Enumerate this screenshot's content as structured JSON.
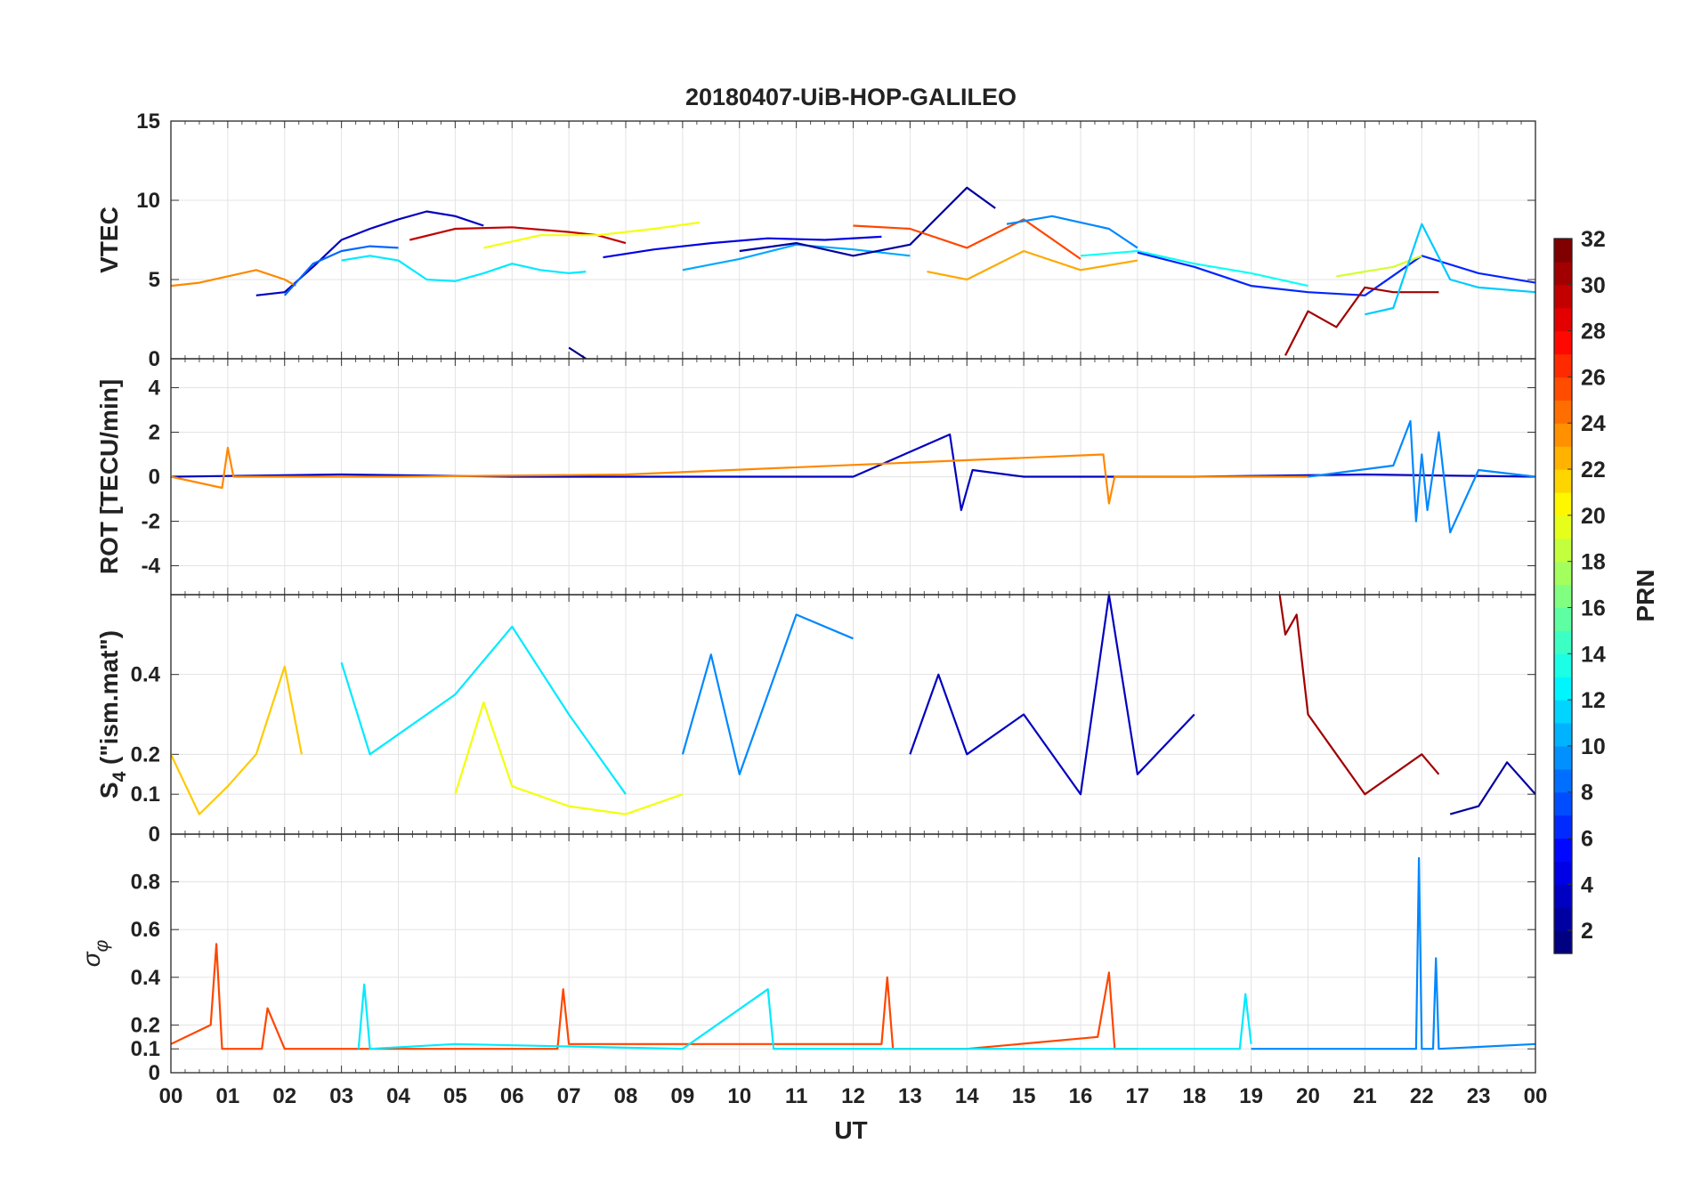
{
  "chart_data": [
    {
      "type": "line",
      "panel": "VTEC",
      "title": "20180407-UiB-HOP-GALILEO",
      "ylabel": "VTEC",
      "xlabel": "",
      "ylim": [
        0,
        15
      ],
      "yticks": [
        0,
        5,
        10,
        15
      ],
      "xlim": [
        0,
        24
      ],
      "grid": true,
      "series": [
        {
          "name": "PRN 3",
          "x": [
            1.5,
            2.0,
            2.5,
            3.0,
            3.5,
            4.0,
            4.5,
            5.0,
            5.5
          ],
          "values": [
            4.0,
            4.2,
            5.8,
            7.5,
            8.2,
            8.8,
            9.3,
            9.0,
            8.4
          ]
        },
        {
          "name": "PRN 24",
          "x": [
            0.0,
            0.5,
            1.0,
            1.5,
            2.0,
            2.2
          ],
          "values": [
            4.6,
            4.8,
            5.2,
            5.6,
            5.0,
            4.6
          ]
        },
        {
          "name": "PRN 8",
          "x": [
            2.0,
            2.5,
            3.0,
            3.5,
            4.0
          ],
          "values": [
            4.0,
            6.0,
            6.8,
            7.1,
            7.0
          ]
        },
        {
          "name": "PRN 12",
          "x": [
            3.0,
            3.5,
            4.0,
            4.5,
            5.0,
            5.5,
            6.0,
            6.5,
            7.0,
            7.3
          ],
          "values": [
            6.2,
            6.5,
            6.2,
            5.0,
            4.9,
            5.4,
            6.0,
            5.6,
            5.4,
            5.5
          ]
        },
        {
          "name": "PRN 30",
          "x": [
            4.2,
            5.0,
            6.0,
            7.0,
            7.5,
            8.0
          ],
          "values": [
            7.5,
            8.2,
            8.3,
            8.0,
            7.8,
            7.3
          ]
        },
        {
          "name": "PRN 20",
          "x": [
            5.5,
            6.5,
            7.5,
            8.5,
            9.3
          ],
          "values": [
            7.0,
            7.8,
            7.8,
            8.2,
            8.6
          ]
        },
        {
          "name": "PRN 4",
          "x": [
            7.6,
            8.5,
            9.5,
            10.5,
            11.5,
            12.5
          ],
          "values": [
            6.4,
            6.9,
            7.3,
            7.6,
            7.5,
            7.7
          ]
        },
        {
          "name": "PRN 10",
          "x": [
            9.0,
            10.0,
            11.0,
            12.0,
            13.0
          ],
          "values": [
            5.6,
            6.3,
            7.2,
            6.9,
            6.5
          ]
        },
        {
          "name": "PRN 2",
          "x": [
            10.0,
            11.0,
            12.0,
            13.0,
            14.0,
            14.5
          ],
          "values": [
            6.8,
            7.3,
            6.5,
            7.2,
            10.8,
            9.5
          ]
        },
        {
          "name": "PRN 26",
          "x": [
            12.0,
            13.0,
            14.0,
            15.0,
            16.0
          ],
          "values": [
            8.4,
            8.2,
            7.0,
            8.8,
            6.3
          ]
        },
        {
          "name": "PRN 23",
          "x": [
            13.3,
            14.0,
            15.0,
            16.0,
            17.0
          ],
          "values": [
            5.5,
            5.0,
            6.8,
            5.6,
            6.2
          ]
        },
        {
          "name": "PRN 9",
          "x": [
            14.7,
            15.5,
            16.5,
            17.0
          ],
          "values": [
            8.5,
            9.0,
            8.2,
            7.0
          ]
        },
        {
          "name": "PRN 13",
          "x": [
            16.0,
            17.0,
            18.0,
            19.0,
            20.0
          ],
          "values": [
            6.5,
            6.8,
            6.0,
            5.4,
            4.6
          ]
        },
        {
          "name": "PRN 6",
          "x": [
            17.0,
            18.0,
            19.0,
            20.0,
            21.0,
            22.0,
            23.0,
            24.0
          ],
          "values": [
            6.7,
            5.8,
            4.6,
            4.2,
            4.0,
            6.5,
            5.4,
            4.8
          ]
        },
        {
          "name": "PRN 31",
          "x": [
            19.6,
            20.0,
            20.5,
            21.0,
            21.5,
            22.3
          ],
          "values": [
            0.2,
            3.0,
            2.0,
            4.5,
            4.2,
            4.2
          ]
        },
        {
          "name": "PRN 19",
          "x": [
            20.5,
            21.0,
            21.5,
            22.0
          ],
          "values": [
            5.2,
            5.5,
            5.8,
            6.5
          ]
        },
        {
          "name": "PRN 11",
          "x": [
            21.0,
            21.5,
            22.0,
            22.5,
            23.0,
            24.0
          ],
          "values": [
            2.8,
            3.2,
            8.5,
            5.0,
            4.5,
            4.2
          ]
        },
        {
          "name": "PRN 1",
          "x": [
            7.0,
            7.3
          ],
          "values": [
            0.7,
            0.0
          ]
        }
      ]
    },
    {
      "type": "line",
      "panel": "ROT",
      "ylabel": "ROT [TECU/min]",
      "ylim": [
        -5.3,
        5.3
      ],
      "yticks": [
        -4,
        -2,
        0,
        2,
        4
      ],
      "xlim": [
        0,
        24
      ],
      "grid": true,
      "series": [
        {
          "name": "PRN 3",
          "x": [
            0.0,
            3.0,
            6.0,
            9.0,
            12.0,
            13.7,
            13.9,
            14.1,
            15.0,
            18.0,
            21.0,
            24.0
          ],
          "values": [
            0.0,
            0.1,
            0.0,
            0.0,
            0.0,
            1.9,
            -1.5,
            0.3,
            0.0,
            0.0,
            0.1,
            0.0
          ]
        },
        {
          "name": "PRN 24",
          "x": [
            0.0,
            0.9,
            1.0,
            1.1,
            4.0,
            8.0,
            16.4,
            16.5,
            16.6,
            20.0
          ],
          "values": [
            0.0,
            -0.5,
            1.3,
            0.0,
            0.0,
            0.1,
            1.0,
            -1.2,
            0.0,
            0.0
          ]
        },
        {
          "name": "PRN 9",
          "x": [
            20.0,
            21.5,
            21.8,
            21.9,
            22.0,
            22.1,
            22.3,
            22.5,
            23.0,
            24.0
          ],
          "values": [
            0.0,
            0.5,
            2.5,
            -2.0,
            1.0,
            -1.5,
            2.0,
            -2.5,
            0.3,
            0.0
          ]
        }
      ]
    },
    {
      "type": "line",
      "panel": "S4",
      "ylabel": "S_4 (\"ism.mat\")",
      "ylim": [
        0,
        0.6
      ],
      "yticks": [
        0,
        0.1,
        0.2,
        0.4
      ],
      "xlim": [
        0,
        24
      ],
      "grid": true,
      "series": [
        {
          "name": "PRN 22",
          "x": [
            0.0,
            0.5,
            1.0,
            1.5,
            2.0,
            2.3
          ],
          "values": [
            0.2,
            0.05,
            0.12,
            0.2,
            0.42,
            0.2
          ]
        },
        {
          "name": "PRN 12",
          "x": [
            3.0,
            3.5,
            5.0,
            6.0,
            7.0,
            8.0
          ],
          "values": [
            0.43,
            0.2,
            0.35,
            0.52,
            0.3,
            0.1
          ]
        },
        {
          "name": "PRN 20",
          "x": [
            5.0,
            5.5,
            6.0,
            7.0,
            8.0,
            9.0
          ],
          "values": [
            0.1,
            0.33,
            0.12,
            0.07,
            0.05,
            0.1
          ]
        },
        {
          "name": "PRN 9",
          "x": [
            9.0,
            9.5,
            10.0,
            11.0,
            12.0
          ],
          "values": [
            0.2,
            0.45,
            0.15,
            0.55,
            0.49
          ]
        },
        {
          "name": "PRN 3",
          "x": [
            13.0,
            13.5,
            14.0,
            15.0,
            16.0,
            16.5,
            17.0,
            18.0
          ],
          "values": [
            0.2,
            0.4,
            0.2,
            0.3,
            0.1,
            0.6,
            0.15,
            0.3
          ]
        },
        {
          "name": "PRN 31",
          "x": [
            19.5,
            19.6,
            19.8,
            20.0,
            20.5,
            21.0,
            22.0,
            22.3
          ],
          "values": [
            0.6,
            0.5,
            0.55,
            0.3,
            0.2,
            0.1,
            0.2,
            0.15
          ]
        },
        {
          "name": "PRN 2",
          "x": [
            22.5,
            23.0,
            23.5,
            24.0
          ],
          "values": [
            0.05,
            0.07,
            0.18,
            0.1
          ]
        }
      ]
    },
    {
      "type": "line",
      "panel": "sigma_phi",
      "ylabel": "σ_φ",
      "xlabel": "UT",
      "ylim": [
        0,
        1
      ],
      "yticks": [
        0,
        0.1,
        0.2,
        0.4,
        0.6,
        0.8
      ],
      "xlim": [
        0,
        24
      ],
      "xticks": [
        "00",
        "01",
        "02",
        "03",
        "04",
        "05",
        "06",
        "07",
        "08",
        "09",
        "10",
        "11",
        "12",
        "13",
        "14",
        "15",
        "16",
        "17",
        "18",
        "19",
        "20",
        "21",
        "22",
        "23",
        "00"
      ],
      "grid": true,
      "series": [
        {
          "name": "PRN 26",
          "x": [
            0.0,
            0.7,
            0.8,
            0.9,
            1.6,
            1.7,
            2.0,
            6.8,
            6.9,
            7.0,
            12.5,
            12.6,
            12.7,
            14.0,
            16.3,
            16.5,
            16.6,
            17.0
          ],
          "values": [
            0.12,
            0.2,
            0.54,
            0.1,
            0.1,
            0.27,
            0.1,
            0.1,
            0.35,
            0.12,
            0.12,
            0.4,
            0.1,
            0.1,
            0.15,
            0.42,
            0.1,
            0.1
          ]
        },
        {
          "name": "PRN 12",
          "x": [
            3.3,
            3.4,
            3.5,
            5.0,
            9.0,
            10.5,
            10.6,
            12.0,
            18.8,
            18.9,
            19.0
          ],
          "values": [
            0.1,
            0.37,
            0.1,
            0.12,
            0.1,
            0.35,
            0.1,
            0.1,
            0.1,
            0.33,
            0.12
          ]
        },
        {
          "name": "PRN 9",
          "x": [
            19.0,
            21.9,
            21.95,
            22.0,
            22.2,
            22.25,
            22.3,
            24.0
          ],
          "values": [
            0.1,
            0.1,
            0.9,
            0.1,
            0.1,
            0.48,
            0.1,
            0.12
          ]
        }
      ]
    }
  ],
  "colorbar": {
    "label": "PRN",
    "range": [
      1,
      32
    ],
    "ticks": [
      "2",
      "4",
      "6",
      "8",
      "10",
      "12",
      "14",
      "16",
      "18",
      "20",
      "22",
      "24",
      "26",
      "28",
      "30",
      "32"
    ]
  }
}
